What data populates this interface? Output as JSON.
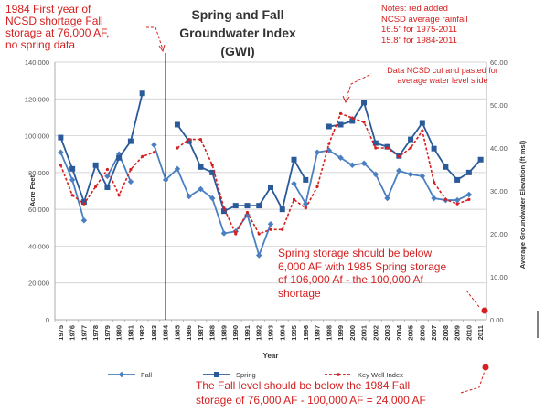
{
  "chart_data": {
    "type": "line",
    "title_lines": [
      "Spring and Fall",
      "Groundwater Index",
      "(GWI)"
    ],
    "xlabel": "Year",
    "ylabel": "Acre Feet",
    "y2label": "Average Groundwater Elevation (ft msl)",
    "ylim": [
      0,
      140000
    ],
    "y2lim": [
      0,
      60
    ],
    "y_ticks": [
      "0",
      "20,000",
      "40,000",
      "60,000",
      "80,000",
      "100,000",
      "120,000",
      "140,000"
    ],
    "y2_ticks": [
      "0.00",
      "10.00",
      "20.00",
      "30.00",
      "40.00",
      "50.00",
      "60.00"
    ],
    "categories": [
      "1975",
      "1976",
      "1977",
      "1978",
      "1979",
      "1980",
      "1981",
      "1982",
      "1983",
      "1984",
      "1985",
      "1986",
      "1987",
      "1988",
      "1989",
      "1990",
      "1991",
      "1992",
      "1993",
      "1994",
      "1995",
      "1996",
      "1997",
      "1998",
      "1999",
      "2000",
      "2001",
      "2002",
      "2003",
      "2004",
      "2005",
      "2006",
      "2007",
      "2008",
      "2009",
      "2010",
      "2011"
    ],
    "series": [
      {
        "name": "Fall",
        "color": "#4a7fc1",
        "axis": "left",
        "values": [
          91000,
          76000,
          54000,
          null,
          78000,
          90000,
          75000,
          null,
          95000,
          76000,
          82000,
          67000,
          71000,
          66000,
          47000,
          48000,
          57000,
          35000,
          52000,
          null,
          74000,
          63000,
          91000,
          92000,
          88000,
          84000,
          85000,
          79000,
          66000,
          81000,
          79000,
          78000,
          66000,
          65000,
          65000,
          68000,
          null
        ]
      },
      {
        "name": "Spring",
        "color": "#2a5a99",
        "axis": "left",
        "values": [
          99000,
          82000,
          64000,
          84000,
          72000,
          88000,
          97000,
          123000,
          null,
          null,
          106000,
          97000,
          83000,
          80000,
          59000,
          62000,
          62000,
          62000,
          72000,
          60000,
          87000,
          76000,
          null,
          105000,
          106000,
          108000,
          118000,
          96000,
          94000,
          89000,
          98000,
          107000,
          93000,
          83000,
          76000,
          80000,
          87000
        ]
      },
      {
        "name": "Key Well Index",
        "color": "#d42020",
        "axis": "right",
        "values": [
          36,
          29,
          27,
          31,
          35,
          29,
          35,
          38,
          39,
          null,
          40,
          42,
          42,
          36,
          26,
          20,
          25,
          20,
          21,
          21,
          28,
          26,
          31,
          41,
          48,
          47,
          46,
          40,
          40,
          38,
          40,
          44,
          32,
          28,
          27,
          28,
          null
        ]
      }
    ],
    "divider_year": "1984",
    "legend": "bottom"
  },
  "annotations": {
    "top_left": [
      "1984 First year of",
      "NCSD shortage Fall",
      "storage at 76,000 AF,",
      "no spring data"
    ],
    "notes": [
      "Notes: red added",
      "NCSD average rainfall",
      "16.5\" for 1975-2011",
      "15.8\" for 1984-2011"
    ],
    "data_note": [
      "Data NCSD cut and pasted for",
      "average water level slide"
    ],
    "spring_note": [
      "Spring storage should be below",
      "6,000 AF with 1985 Spring storage",
      "of 106,000 Af - the 100,000 Af",
      "shortage"
    ],
    "fall_note": [
      "The Fall level should be below the 1984 Fall",
      "storage of 76,000 AF - 100,000 AF = 24,000 AF"
    ]
  },
  "colors": {
    "annotation": "#d42020",
    "grid": "#c8c8c8",
    "axis_text": "#555555"
  }
}
